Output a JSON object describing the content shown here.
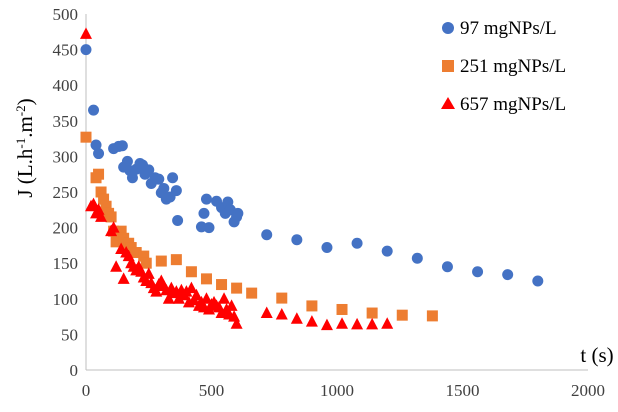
{
  "chart_data": {
    "type": "scatter",
    "xlabel": "t (s)",
    "ylabel": "J (L.h-1.m-2)",
    "ylabel_parts": {
      "base": "J (L.h",
      "exp1": "-1",
      "mid": ".m",
      "exp2": "-2",
      "end": ")"
    },
    "xlim": [
      0,
      2000
    ],
    "ylim": [
      0,
      500
    ],
    "x_ticks": [
      0,
      500,
      1000,
      1500,
      2000
    ],
    "y_ticks": [
      0,
      50,
      100,
      150,
      200,
      250,
      300,
      350,
      400,
      450,
      500
    ],
    "grid": false,
    "legend_position": "top-right",
    "series": [
      {
        "name": "97 mgNPs/L",
        "marker": "circle",
        "color": "#4472C4",
        "points": [
          [
            0,
            450
          ],
          [
            30,
            365
          ],
          [
            40,
            316
          ],
          [
            50,
            304
          ],
          [
            110,
            311
          ],
          [
            130,
            314
          ],
          [
            145,
            315
          ],
          [
            150,
            285
          ],
          [
            165,
            293
          ],
          [
            175,
            280
          ],
          [
            185,
            270
          ],
          [
            200,
            282
          ],
          [
            215,
            290
          ],
          [
            225,
            288
          ],
          [
            235,
            275
          ],
          [
            250,
            281
          ],
          [
            260,
            262
          ],
          [
            275,
            270
          ],
          [
            290,
            268
          ],
          [
            300,
            249
          ],
          [
            310,
            255
          ],
          [
            320,
            240
          ],
          [
            335,
            243
          ],
          [
            345,
            270
          ],
          [
            360,
            252
          ],
          [
            365,
            210
          ],
          [
            460,
            201
          ],
          [
            470,
            220
          ],
          [
            480,
            240
          ],
          [
            490,
            200
          ],
          [
            520,
            237
          ],
          [
            540,
            228
          ],
          [
            555,
            220
          ],
          [
            565,
            236
          ],
          [
            575,
            225
          ],
          [
            590,
            208
          ],
          [
            600,
            215
          ],
          [
            605,
            220
          ],
          [
            720,
            190
          ],
          [
            840,
            183
          ],
          [
            960,
            172
          ],
          [
            1080,
            178
          ],
          [
            1200,
            167
          ],
          [
            1320,
            157
          ],
          [
            1440,
            145
          ],
          [
            1560,
            138
          ],
          [
            1680,
            134
          ],
          [
            1800,
            125
          ]
        ]
      },
      {
        "name": "251 mgNPs/L",
        "marker": "square",
        "color": "#ED7D31",
        "points": [
          [
            0,
            327
          ],
          [
            40,
            270
          ],
          [
            50,
            275
          ],
          [
            60,
            250
          ],
          [
            70,
            240
          ],
          [
            80,
            230
          ],
          [
            90,
            220
          ],
          [
            100,
            215
          ],
          [
            110,
            195
          ],
          [
            120,
            180
          ],
          [
            130,
            190
          ],
          [
            140,
            195
          ],
          [
            150,
            185
          ],
          [
            160,
            175
          ],
          [
            170,
            178
          ],
          [
            180,
            172
          ],
          [
            200,
            165
          ],
          [
            230,
            160
          ],
          [
            240,
            150
          ],
          [
            300,
            153
          ],
          [
            360,
            155
          ],
          [
            420,
            138
          ],
          [
            480,
            128
          ],
          [
            540,
            120
          ],
          [
            600,
            115
          ],
          [
            660,
            108
          ],
          [
            780,
            101
          ],
          [
            900,
            90
          ],
          [
            1020,
            85
          ],
          [
            1140,
            80
          ],
          [
            1260,
            77
          ],
          [
            1380,
            76
          ]
        ]
      },
      {
        "name": "657 mgNPs/L",
        "marker": "triangle",
        "color": "#FF0000",
        "points": [
          [
            0,
            472
          ],
          [
            20,
            230
          ],
          [
            30,
            233
          ],
          [
            40,
            220
          ],
          [
            50,
            225
          ],
          [
            60,
            215
          ],
          [
            100,
            195
          ],
          [
            110,
            200
          ],
          [
            120,
            145
          ],
          [
            140,
            170
          ],
          [
            150,
            128
          ],
          [
            160,
            165
          ],
          [
            170,
            160
          ],
          [
            180,
            150
          ],
          [
            190,
            145
          ],
          [
            200,
            140
          ],
          [
            210,
            145
          ],
          [
            220,
            138
          ],
          [
            230,
            130
          ],
          [
            240,
            125
          ],
          [
            250,
            135
          ],
          [
            260,
            122
          ],
          [
            270,
            115
          ],
          [
            280,
            110
          ],
          [
            290,
            120
          ],
          [
            300,
            125
          ],
          [
            310,
            118
          ],
          [
            320,
            112
          ],
          [
            330,
            100
          ],
          [
            340,
            115
          ],
          [
            350,
            108
          ],
          [
            360,
            110
          ],
          [
            370,
            100
          ],
          [
            380,
            112
          ],
          [
            390,
            105
          ],
          [
            400,
            110
          ],
          [
            410,
            95
          ],
          [
            420,
            115
          ],
          [
            430,
            98
          ],
          [
            440,
            105
          ],
          [
            450,
            90
          ],
          [
            460,
            95
          ],
          [
            470,
            88
          ],
          [
            480,
            100
          ],
          [
            490,
            85
          ],
          [
            500,
            92
          ],
          [
            510,
            95
          ],
          [
            520,
            90
          ],
          [
            530,
            88
          ],
          [
            540,
            80
          ],
          [
            550,
            100
          ],
          [
            560,
            85
          ],
          [
            570,
            78
          ],
          [
            580,
            90
          ],
          [
            590,
            75
          ],
          [
            600,
            65
          ],
          [
            720,
            80
          ],
          [
            780,
            78
          ],
          [
            840,
            72
          ],
          [
            900,
            68
          ],
          [
            960,
            63
          ],
          [
            1020,
            65
          ],
          [
            1080,
            64
          ],
          [
            1140,
            64
          ],
          [
            1200,
            65
          ]
        ]
      }
    ]
  }
}
